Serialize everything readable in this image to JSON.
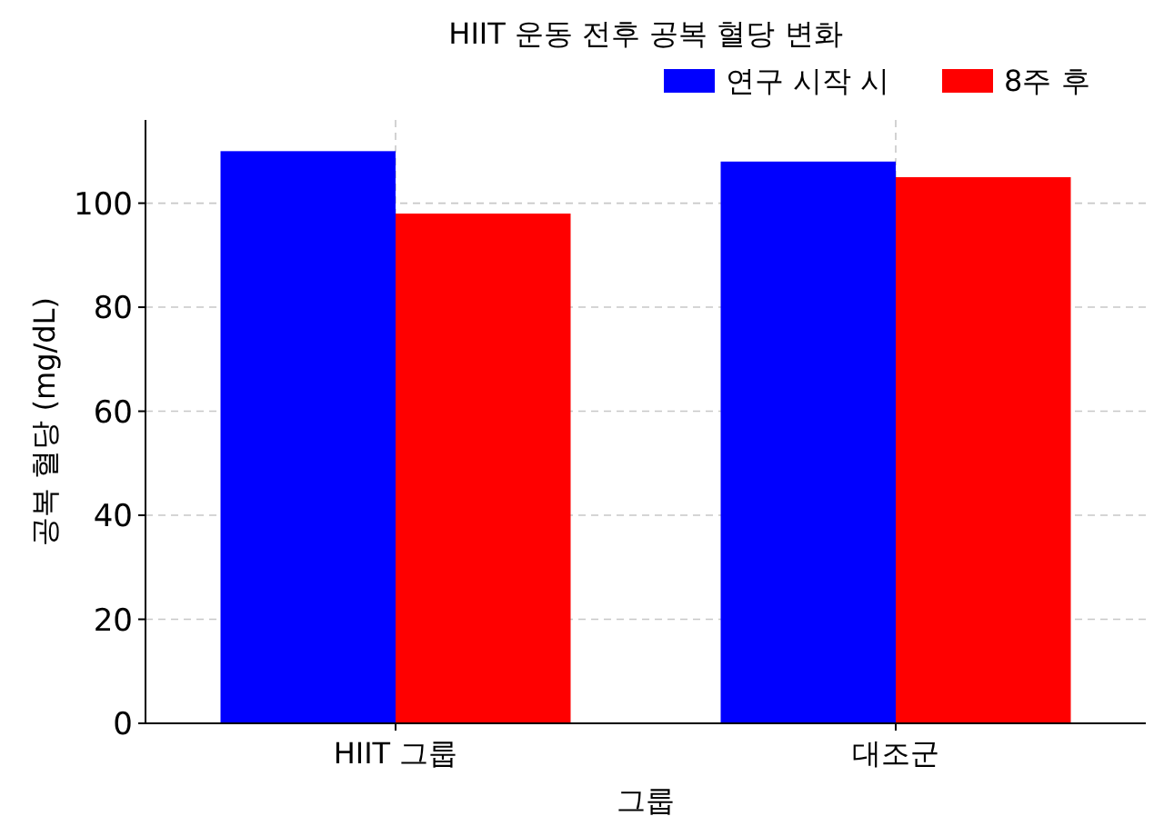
{
  "chart_data": {
    "type": "bar",
    "title": "HIIT 운동 전후 공복 혈당 변화",
    "xlabel": "그룹",
    "ylabel": "공복 혈당 (mg/dL)",
    "categories": [
      "HIIT 그룹",
      "대조군"
    ],
    "series": [
      {
        "name": "연구 시작 시",
        "color": "#0000ff",
        "values": [
          110,
          108
        ]
      },
      {
        "name": "8주 후",
        "color": "#ff0000",
        "values": [
          98,
          105
        ]
      }
    ],
    "ylim": [
      0,
      116
    ],
    "yticks": [
      0,
      20,
      40,
      60,
      80,
      100
    ],
    "grid": true,
    "legend": "top right"
  }
}
